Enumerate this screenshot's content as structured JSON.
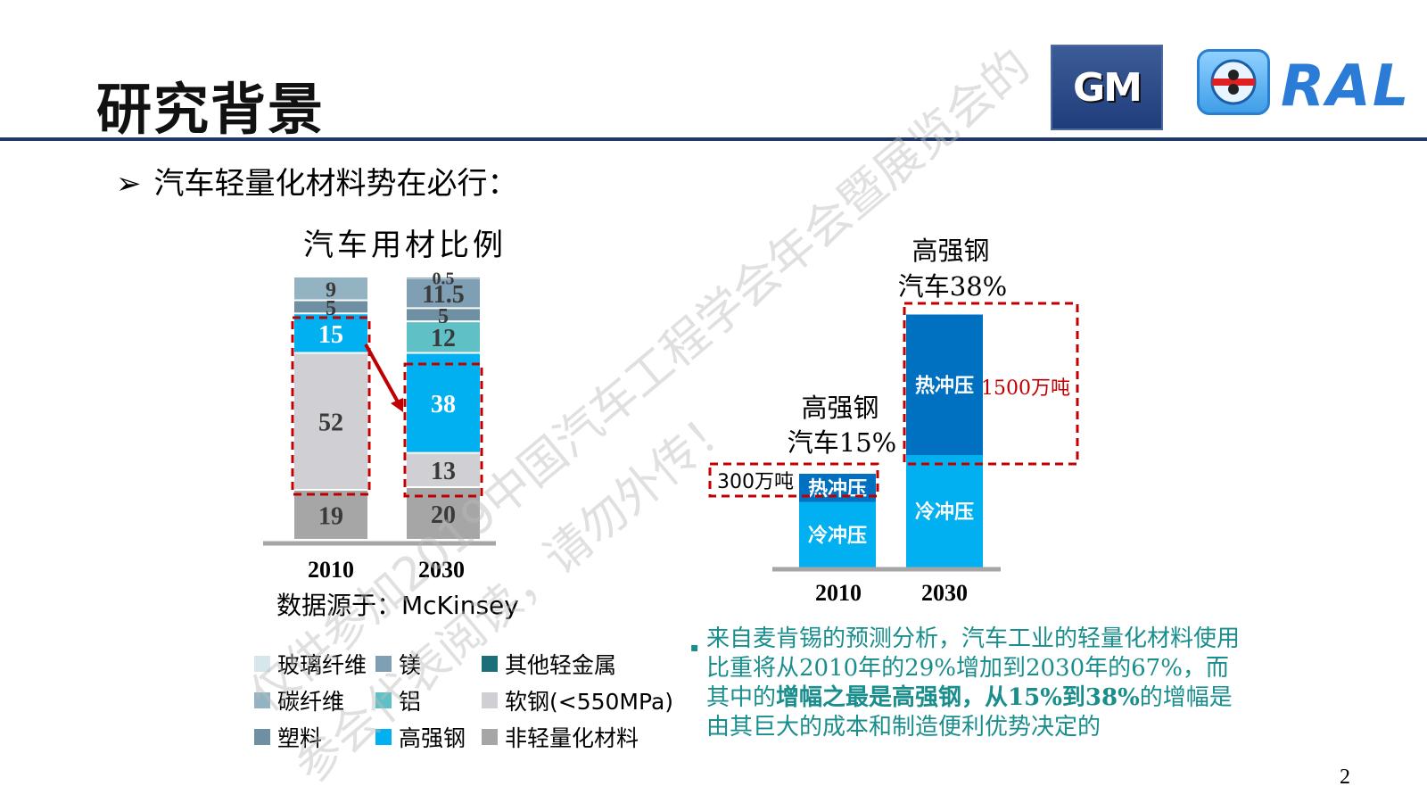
{
  "page": {
    "title": "研究背景",
    "bullet": "汽车轻量化材料势在必行：",
    "bullet_arrow": "➢",
    "logo_gm": "GM",
    "logo_ral": "RAL",
    "page_number": "2",
    "watermark_line1": "仅供参加2019中国汽车工程学会年会暨展览会的",
    "watermark_line2": "参会代表阅读，请勿外传！"
  },
  "note": {
    "bullet": "▪",
    "part1": "来自麦肯锡的预测分析，汽车工业的轻量化材料使用比重将从2010年的29%增加到2030年的67%，而其中的",
    "highlight": "增幅之最是高强钢，从15%到38%",
    "part2": "的增幅是由其巨大的成本和制造便利优势决定的"
  },
  "chart_data": [
    {
      "type": "bar",
      "stacked": true,
      "title": "汽车用材比例",
      "source": "数据源于：McKinsey",
      "categories": [
        "2010",
        "2030"
      ],
      "series": [
        {
          "name": "非轻量化材料",
          "values": [
            19,
            20
          ],
          "color": "#a6a6a6"
        },
        {
          "name": "软钢(<550MPa)",
          "values": [
            52,
            13
          ],
          "color": "#d0d0d4"
        },
        {
          "name": "高强钢",
          "values": [
            15,
            38
          ],
          "color": "#00b0f0"
        },
        {
          "name": "铝",
          "values": [
            0,
            12
          ],
          "color": "#5fc1c6"
        },
        {
          "name": "塑料",
          "values": [
            5,
            5
          ],
          "color": "#6f8fa3"
        },
        {
          "name": "镁",
          "values": [
            0,
            11.5
          ],
          "color": "#7f9fb4"
        },
        {
          "name": "碳纤维",
          "values": [
            9,
            0.5
          ],
          "color": "#93b3c3"
        },
        {
          "name": "玻璃纤维",
          "values": [
            0,
            0
          ],
          "color": "#d6e6ea"
        },
        {
          "name": "其他轻金属",
          "values": [
            0,
            0
          ],
          "color": "#1c6f78"
        }
      ],
      "data_labels": {
        "2010": [
          "19",
          "52",
          "15",
          "5",
          "9"
        ],
        "2030": [
          "20",
          "13",
          "38",
          "12",
          "5",
          "11.5",
          "0.5"
        ]
      },
      "legend": [
        "玻璃纤维",
        "镁",
        "其他轻金属",
        "碳纤维",
        "铝",
        "软钢(<550MPa)",
        "塑料",
        "高强钢",
        "非轻量化材料"
      ],
      "legend_placement": "bottom"
    },
    {
      "type": "bar",
      "stacked": true,
      "categories": [
        "2010",
        "2030"
      ],
      "series": [
        {
          "name": "冷冲压",
          "values": [
            7,
            12
          ],
          "color": "#00b0f0"
        },
        {
          "name": "热冲压",
          "values": [
            3,
            15
          ],
          "color": "#0070c0"
        }
      ],
      "annotations": {
        "label_2010": [
          "高强钢",
          "汽车15%"
        ],
        "label_2030": [
          "高强钢",
          "汽车38%"
        ],
        "amount_2010": "300万吨",
        "amount_2030": "1500万吨"
      }
    }
  ]
}
